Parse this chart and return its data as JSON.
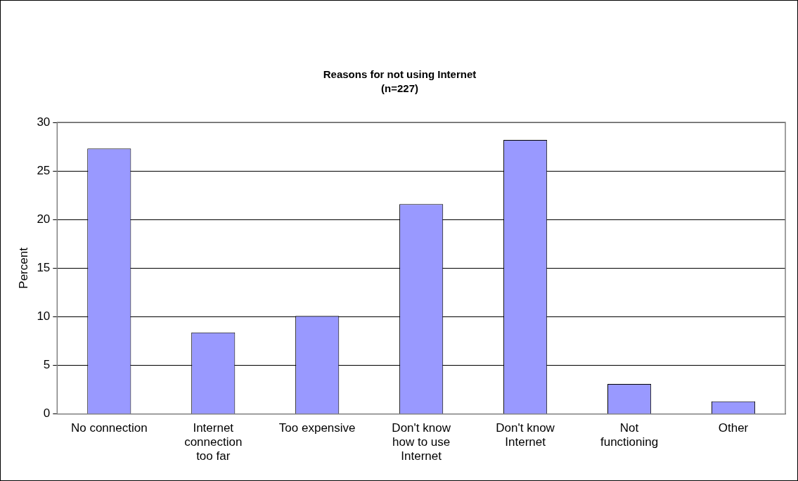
{
  "chart_data": {
    "type": "bar",
    "title": "Reasons for not using Internet",
    "subtitle": "(n=227)",
    "ylabel": "Percent",
    "categories": [
      "No connection",
      "Internet connection too far",
      "Too expensive",
      "Don't know how to use Internet",
      "Don't know Internet",
      "Not functioning",
      "Other"
    ],
    "values": [
      27.3,
      8.4,
      10.1,
      21.6,
      28.2,
      3.1,
      1.3
    ],
    "color": "#9999ff",
    "ylim": [
      0,
      30
    ],
    "yticks": [
      0,
      5,
      10,
      15,
      20,
      25,
      30
    ],
    "grid": "y",
    "legend": false
  }
}
